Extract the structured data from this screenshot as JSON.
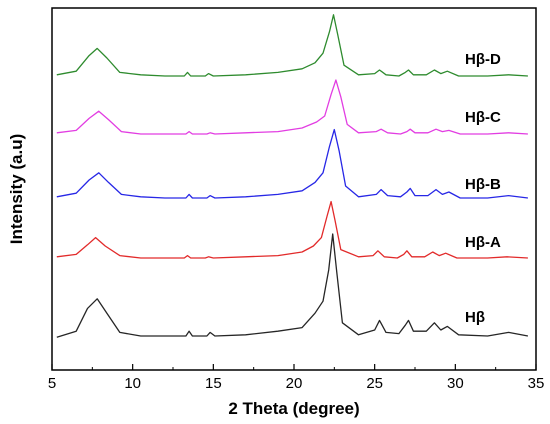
{
  "chart_data": {
    "type": "line",
    "xlabel": "2 Theta (degree)",
    "ylabel": "Intensity (a.u)",
    "xlim": [
      5,
      35
    ],
    "xticks": [
      5,
      10,
      15,
      20,
      25,
      30,
      35
    ],
    "yticks_shown": false,
    "grid": false,
    "legend": "inline labels at right end of each trace",
    "series": [
      {
        "name": "Hβ-D",
        "color": "#2e8b2e",
        "x": [
          5.3,
          6.5,
          7.3,
          7.8,
          8.4,
          9.2,
          10.5,
          12,
          13.2,
          13.4,
          13.6,
          14.5,
          14.7,
          15,
          17,
          19,
          20.5,
          21.3,
          21.8,
          22.2,
          22.45,
          22.7,
          23.1,
          24,
          25,
          25.3,
          25.7,
          26.5,
          26.9,
          27.1,
          27.4,
          28.2,
          28.7,
          29.1,
          29.5,
          30.2,
          32,
          33.3,
          34.5
        ],
        "y": [
          6,
          9,
          22,
          28,
          20,
          8,
          6,
          5,
          5,
          8,
          5,
          5,
          7,
          5,
          6,
          8,
          11,
          16,
          24,
          42,
          56,
          40,
          14,
          6,
          7,
          10,
          6,
          5,
          8,
          10,
          6,
          6,
          10,
          7,
          9,
          5,
          5,
          6,
          5
        ]
      },
      {
        "name": "Hβ-C",
        "color": "#e23de2",
        "x": [
          5.3,
          6.5,
          7.3,
          7.9,
          8.5,
          9.3,
          10.5,
          12,
          13.3,
          13.5,
          13.7,
          14.6,
          14.8,
          15.1,
          17,
          19,
          20.5,
          21.4,
          21.9,
          22.3,
          22.6,
          22.9,
          23.3,
          24,
          25.1,
          25.4,
          25.8,
          26.6,
          27,
          27.2,
          27.5,
          28.3,
          28.8,
          29.2,
          29.6,
          30.3,
          32,
          33.3,
          34.5
        ],
        "y": [
          6,
          8,
          18,
          24,
          17,
          7,
          5,
          5,
          5,
          7,
          5,
          5,
          6,
          5,
          6,
          7,
          10,
          15,
          20,
          38,
          50,
          36,
          13,
          6,
          7,
          9,
          6,
          5,
          7,
          9,
          6,
          6,
          9,
          7,
          8,
          5,
          5,
          6,
          5
        ]
      },
      {
        "name": "Hβ-B",
        "color": "#2727e6",
        "x": [
          5.3,
          6.5,
          7.3,
          7.9,
          8.5,
          9.3,
          10.5,
          12,
          13.3,
          13.5,
          13.7,
          14.6,
          14.8,
          15.1,
          17,
          19,
          20.5,
          21.3,
          21.8,
          22.2,
          22.5,
          22.8,
          23.2,
          24,
          25.1,
          25.4,
          25.8,
          26.6,
          27,
          27.2,
          27.5,
          28.3,
          28.8,
          29.2,
          29.6,
          30.3,
          32,
          33.3,
          34.5
        ],
        "y": [
          6,
          9,
          20,
          26,
          18,
          8,
          6,
          5,
          5,
          8,
          5,
          5,
          7,
          5,
          6,
          8,
          11,
          18,
          26,
          48,
          62,
          44,
          15,
          6,
          8,
          12,
          7,
          6,
          10,
          13,
          7,
          7,
          12,
          8,
          10,
          5,
          5,
          7,
          5
        ]
      },
      {
        "name": "Hβ-A",
        "color": "#e22a2a",
        "x": [
          5.3,
          6.5,
          7.2,
          7.7,
          8.3,
          9.2,
          10.5,
          12,
          13.2,
          13.4,
          13.6,
          14.5,
          14.7,
          15,
          17,
          19,
          20.5,
          21.2,
          21.7,
          22.05,
          22.3,
          22.55,
          22.9,
          24,
          24.9,
          25.2,
          25.6,
          26.4,
          26.8,
          27,
          27.3,
          28.1,
          28.6,
          29,
          29.4,
          30.1,
          32,
          33.2,
          34.5
        ],
        "y": [
          6,
          8,
          16,
          22,
          15,
          7,
          5,
          5,
          5,
          7,
          5,
          5,
          6,
          5,
          6,
          7,
          10,
          15,
          22,
          40,
          52,
          36,
          12,
          6,
          7,
          11,
          6,
          5,
          8,
          11,
          6,
          6,
          10,
          7,
          9,
          5,
          5,
          6,
          5
        ]
      },
      {
        "name": "Hβ",
        "color": "#262626",
        "x": [
          5.3,
          6.5,
          7.2,
          7.8,
          8.4,
          9.2,
          10.5,
          12,
          13.3,
          13.5,
          13.7,
          14.6,
          14.8,
          15.1,
          17,
          19,
          20.5,
          21.3,
          21.8,
          22.15,
          22.4,
          22.65,
          23,
          24,
          25,
          25.3,
          25.7,
          26.5,
          26.9,
          27.1,
          27.4,
          28.2,
          28.7,
          29.1,
          29.5,
          30.2,
          32,
          33.3,
          34.5
        ],
        "y": [
          4,
          9,
          28,
          36,
          24,
          8,
          5,
          5,
          5,
          9,
          5,
          5,
          8,
          5,
          6,
          9,
          12,
          24,
          34,
          60,
          90,
          58,
          16,
          6,
          10,
          18,
          8,
          7,
          14,
          18,
          9,
          9,
          16,
          10,
          13,
          6,
          5,
          8,
          5
        ]
      }
    ]
  }
}
